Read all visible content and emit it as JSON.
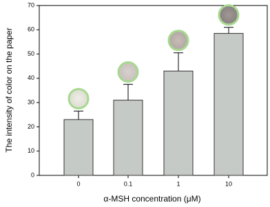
{
  "chart_data": {
    "type": "bar",
    "x_label": "α-MSH concentration (μM)",
    "y_label": "The intensity of color on the paper",
    "categories": [
      "0",
      "0.1",
      "1",
      "10"
    ],
    "values": [
      23,
      31,
      43,
      58.5
    ],
    "errors": [
      3.5,
      6.5,
      7.5,
      2.5
    ],
    "color": "#c6cac6",
    "ylim": [
      0,
      70
    ],
    "yticks": [
      0,
      10,
      20,
      30,
      40,
      50,
      60,
      70
    ]
  }
}
